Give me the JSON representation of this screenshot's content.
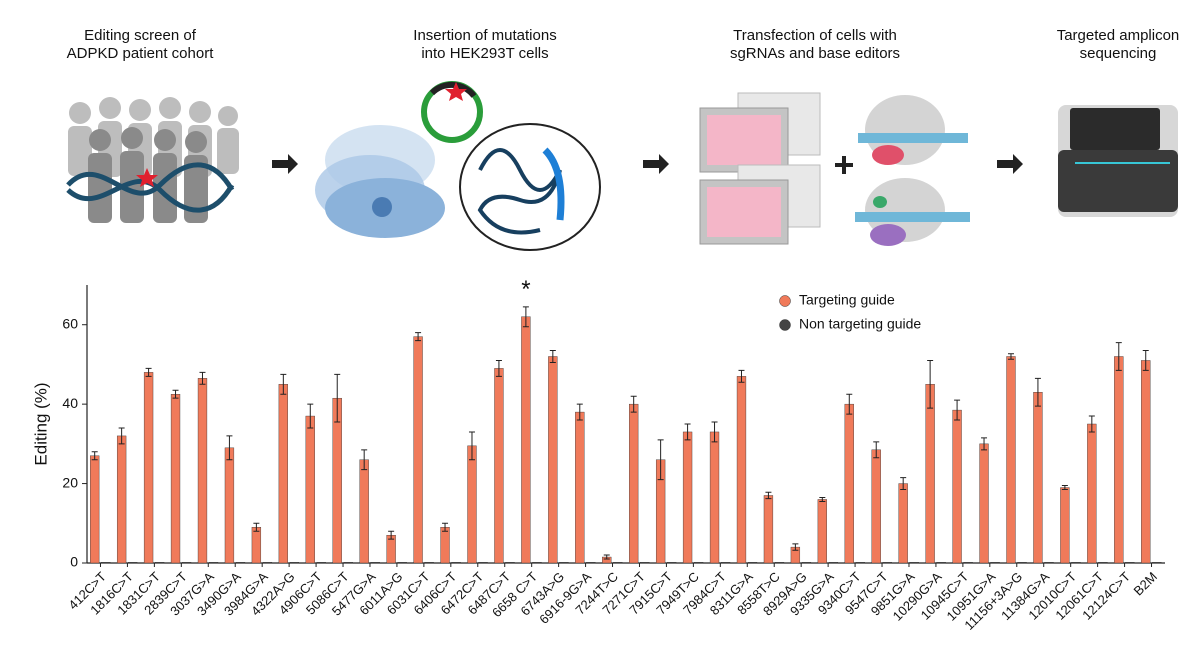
{
  "workflow": {
    "steps": [
      {
        "lines": [
          "Editing screen of",
          "ADPKD patient cohort"
        ]
      },
      {
        "lines": [
          "Insertion of mutations",
          "into HEK293T cells"
        ]
      },
      {
        "lines": [
          "Transfection of cells with",
          "sgRNAs and base editors"
        ]
      },
      {
        "lines": [
          "Targeted amplicon",
          "sequencing"
        ]
      }
    ]
  },
  "chart_data": {
    "type": "bar",
    "y_label": "Editing (%)",
    "categories": [
      "412C>T",
      "1816C>T",
      "1831C>T",
      "2839C>T",
      "3037G>A",
      "3490G>A",
      "3984G>A",
      "4322A>G",
      "4906C>T",
      "5086C>T",
      "5477G>A",
      "6011A>G",
      "6031C>T",
      "6406C>T",
      "6472C>T",
      "6487C>T",
      "6658 C>T",
      "6743A>G",
      "6916-9G>A",
      "7244T>C",
      "7271C>T",
      "7915C>T",
      "7949T>C",
      "7984C>T",
      "8311G>A",
      "8558T>C",
      "8929A>G",
      "9335G>A",
      "9340C>T",
      "9547C>T",
      "9851G>A",
      "10290G>A",
      "10945C>T",
      "10951G>A",
      "11156+3A>G",
      "11384G>A",
      "12010C>T",
      "12061C>T",
      "12124C>T",
      "B2M"
    ],
    "category_colors": [
      "#111",
      "#111",
      "#111",
      "#111",
      "#111",
      "#111",
      "#111",
      "#111",
      "#111",
      "#111",
      "#111",
      "#111",
      "#111",
      "#111",
      "#e0202e",
      "#e0202e",
      "#e0202e",
      "#e0202e",
      "#e0202e",
      "#e0202e",
      "#e0202e",
      "#e0202e",
      "#e0202e",
      "#e0202e",
      "#e0202e",
      "#111",
      "#111",
      "#111",
      "#111",
      "#e0202e",
      "#111",
      "#111",
      "#111",
      "#111",
      "#111",
      "#111",
      "#111",
      "#111",
      "#111",
      "#111"
    ],
    "series": [
      {
        "name": "Targeting guide",
        "color": "#f07a5a",
        "values": [
          27,
          32,
          48,
          42.5,
          46.5,
          29,
          9,
          45,
          37,
          41.5,
          26,
          7,
          57,
          9,
          29.5,
          49,
          62,
          52,
          38,
          1.5,
          40,
          26,
          33,
          33,
          47,
          17,
          4,
          16,
          40,
          28.5,
          20,
          45,
          38.5,
          30,
          52,
          43,
          19,
          35,
          52,
          51
        ],
        "errors": [
          1,
          2,
          1,
          1,
          1.5,
          3,
          1,
          2.5,
          3,
          6,
          2.5,
          1,
          1,
          1,
          3.5,
          2,
          2.5,
          1.5,
          2,
          0.5,
          2,
          5,
          2,
          2.5,
          1.5,
          0.8,
          0.8,
          0.5,
          2.5,
          2,
          1.5,
          6,
          2.5,
          1.5,
          0.7,
          3.5,
          0.5,
          2,
          3.5,
          2.5
        ]
      },
      {
        "name": "Non targeting guide",
        "color": "#444444",
        "values": [
          0.2,
          0.2,
          0.2,
          0.2,
          0.2,
          0.2,
          0.2,
          0.2,
          0.2,
          0.2,
          0.2,
          0.2,
          0.2,
          0.2,
          0.2,
          0.2,
          0.2,
          0.2,
          0.2,
          0.2,
          0.2,
          0.2,
          0.2,
          0.2,
          0.2,
          0.2,
          0.2,
          0.2,
          0.2,
          0.2,
          0.2,
          0.2,
          0.2,
          0.2,
          0.2,
          0.2,
          0.2,
          0.2,
          0.2,
          0.2
        ]
      }
    ],
    "annotations": [
      {
        "text": "*",
        "x": "6658 C>T"
      }
    ],
    "ylim": [
      0,
      70
    ],
    "yticks": [
      0,
      20,
      40,
      60
    ],
    "grid": false,
    "legend": "top-right"
  }
}
